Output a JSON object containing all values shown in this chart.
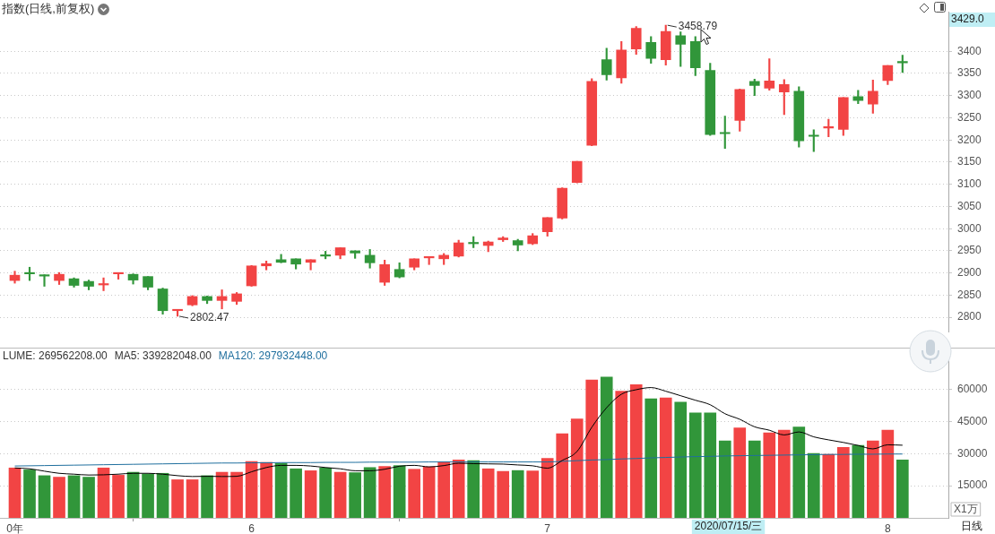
{
  "chart_data": [
    {
      "type": "candlestick",
      "title": "指数(日线,前复权)",
      "categories": [
        null,
        null,
        null,
        null,
        null,
        null,
        null,
        null,
        null,
        null,
        null,
        null,
        null,
        null,
        null,
        null,
        null,
        null,
        null,
        null,
        null,
        null,
        null,
        null,
        null,
        null,
        null,
        null,
        null,
        null,
        null,
        null,
        null,
        null,
        null,
        null,
        null,
        null,
        null,
        null,
        null,
        null,
        null,
        null,
        null,
        null,
        null,
        null,
        null,
        null,
        null,
        null,
        null,
        null,
        null,
        null,
        null,
        null,
        null,
        null,
        null
      ],
      "ohlc": [
        [
          2883,
          2904,
          2877,
          2895
        ],
        [
          2900,
          2913,
          2883,
          2898
        ],
        [
          2895,
          2896,
          2870,
          2893
        ],
        [
          2883,
          2901,
          2874,
          2897
        ],
        [
          2887,
          2889,
          2868,
          2872
        ],
        [
          2881,
          2884,
          2862,
          2870
        ],
        [
          2873,
          2889,
          2860,
          2874
        ],
        [
          2898,
          2900,
          2886,
          2900
        ],
        [
          2897,
          2898,
          2875,
          2884
        ],
        [
          2892,
          2892,
          2862,
          2868
        ],
        [
          2864,
          2866,
          2807,
          2815
        ],
        [
          2815,
          2817,
          2802.47,
          2817
        ],
        [
          2828,
          2849,
          2826,
          2847
        ],
        [
          2847,
          2848,
          2831,
          2838
        ],
        [
          2838,
          2862,
          2819,
          2847
        ],
        [
          2836,
          2856,
          2829,
          2853
        ],
        [
          2871,
          2917,
          2870,
          2916
        ],
        [
          2916,
          2927,
          2907,
          2921
        ],
        [
          2930,
          2942,
          2923,
          2924
        ],
        [
          2932,
          2932,
          2909,
          2920
        ],
        [
          2924,
          2930,
          2907,
          2930
        ],
        [
          2941,
          2949,
          2932,
          2938
        ],
        [
          2940,
          2957,
          2932,
          2957
        ],
        [
          2950,
          2950,
          2933,
          2945
        ],
        [
          2940,
          2953,
          2911,
          2923
        ],
        [
          2879,
          2929,
          2872,
          2919
        ],
        [
          2908,
          2923,
          2889,
          2891
        ],
        [
          2913,
          2932,
          2907,
          2932
        ],
        [
          2934,
          2936,
          2919,
          2936
        ],
        [
          2932,
          2944,
          2919,
          2940
        ],
        [
          2938,
          2974,
          2936,
          2968
        ],
        [
          2968,
          2982,
          2957,
          2966
        ],
        [
          2962,
          2972,
          2948,
          2970
        ],
        [
          2975,
          2982,
          2971,
          2979
        ],
        [
          2973,
          2976,
          2950,
          2963
        ],
        [
          2966,
          2989,
          2964,
          2984
        ],
        [
          2993,
          3025,
          2983,
          3025
        ],
        [
          3024,
          3092,
          3022,
          3091
        ],
        [
          3104,
          3152,
          3103,
          3152
        ],
        [
          3188,
          3338,
          3187,
          3332
        ],
        [
          3381,
          3407,
          3335,
          3347
        ],
        [
          3340,
          3422,
          3328,
          3403
        ],
        [
          3405,
          3456,
          3393,
          3452
        ],
        [
          3420,
          3433,
          3373,
          3384
        ],
        [
          3381,
          3458.79,
          3369,
          3445
        ],
        [
          3435,
          3444,
          3366,
          3416
        ],
        [
          3422,
          3433,
          3345,
          3363
        ],
        [
          3357,
          3373,
          3210,
          3212
        ],
        [
          3216,
          3254,
          3181,
          3214
        ],
        [
          3244,
          3315,
          3220,
          3314
        ],
        [
          3332,
          3337,
          3300,
          3323
        ],
        [
          3317,
          3383,
          3312,
          3333
        ],
        [
          3308,
          3336,
          3257,
          3325
        ],
        [
          3310,
          3320,
          3184,
          3198
        ],
        [
          3211,
          3223,
          3174,
          3208
        ],
        [
          3227,
          3247,
          3207,
          3230
        ],
        [
          3224,
          3296,
          3210,
          3296
        ],
        [
          3298,
          3312,
          3282,
          3289
        ],
        [
          3281,
          3335,
          3260,
          3310
        ],
        [
          3334,
          3368,
          3325,
          3368
        ],
        [
          3377,
          3391,
          3352,
          3374
        ]
      ],
      "colors": [
        "#f24444",
        "#31963a",
        "#31963a",
        "#f24444",
        "#31963a",
        "#31963a",
        "#f24444",
        "#f24444",
        "#31963a",
        "#31963a",
        "#31963a",
        "#f24444",
        "#f24444",
        "#31963a",
        "#f24444",
        "#f24444",
        "#f24444",
        "#f24444",
        "#31963a",
        "#31963a",
        "#f24444",
        "#31963a",
        "#f24444",
        "#31963a",
        "#31963a",
        "#f24444",
        "#31963a",
        "#f24444",
        "#f24444",
        "#f24444",
        "#f24444",
        "#31963a",
        "#f24444",
        "#f24444",
        "#31963a",
        "#f24444",
        "#f24444",
        "#f24444",
        "#f24444",
        "#f24444",
        "#31963a",
        "#f24444",
        "#f24444",
        "#31963a",
        "#f24444",
        "#31963a",
        "#31963a",
        "#31963a",
        "#31963a",
        "#f24444",
        "#31963a",
        "#f24444",
        "#f24444",
        "#31963a",
        "#31963a",
        "#f24444",
        "#f24444",
        "#31963a",
        "#f24444",
        "#f24444",
        "#31963a"
      ],
      "ylim": [
        2768,
        3489
      ],
      "yticks": [
        2800,
        2850,
        2900,
        2950,
        3000,
        3050,
        3100,
        3150,
        3200,
        3250,
        3300,
        3350,
        3400
      ],
      "grid": "y",
      "tick_labels": "y",
      "annotations": [
        "3458.79",
        "2802.47",
        "3429.0"
      ]
    },
    {
      "type": "bar",
      "categories": [
        "0年",
        null,
        null,
        null,
        null,
        null,
        null,
        null,
        null,
        null,
        null,
        null,
        null,
        null,
        null,
        null,
        "6",
        null,
        null,
        null,
        null,
        null,
        null,
        null,
        null,
        null,
        null,
        null,
        null,
        null,
        null,
        null,
        null,
        null,
        null,
        null,
        "7",
        null,
        null,
        null,
        null,
        null,
        null,
        null,
        null,
        null,
        null,
        null,
        null,
        null,
        null,
        null,
        null,
        null,
        null,
        null,
        null,
        null,
        null,
        "8",
        null
      ],
      "series": [
        {
          "type": "bar",
          "colors": [
            "#f24444",
            "#31963a",
            "#31963a",
            "#f24444",
            "#31963a",
            "#31963a",
            "#f24444",
            "#f24444",
            "#31963a",
            "#31963a",
            "#31963a",
            "#f24444",
            "#f24444",
            "#31963a",
            "#f24444",
            "#f24444",
            "#f24444",
            "#f24444",
            "#31963a",
            "#31963a",
            "#f24444",
            "#31963a",
            "#f24444",
            "#31963a",
            "#31963a",
            "#f24444",
            "#31963a",
            "#f24444",
            "#f24444",
            "#f24444",
            "#f24444",
            "#31963a",
            "#f24444",
            "#f24444",
            "#31963a",
            "#f24444",
            "#f24444",
            "#f24444",
            "#f24444",
            "#f24444",
            "#31963a",
            "#f24444",
            "#f24444",
            "#31963a",
            "#f24444",
            "#31963a",
            "#31963a",
            "#31963a",
            "#31963a",
            "#f24444",
            "#31963a",
            "#f24444",
            "#f24444",
            "#31963a",
            "#31963a",
            "#f24444",
            "#f24444",
            "#31963a",
            "#f24444",
            "#f24444",
            "#31963a"
          ],
          "values": [
            23300,
            22400,
            19700,
            19000,
            19700,
            19000,
            23300,
            19900,
            21300,
            20500,
            20800,
            17800,
            17800,
            19700,
            21300,
            21300,
            26300,
            25900,
            25500,
            22900,
            22000,
            23300,
            21300,
            21100,
            23500,
            24000,
            24400,
            22700,
            23800,
            26200,
            27000,
            26700,
            22900,
            21700,
            22100,
            21900,
            27800,
            39300,
            46200,
            64400,
            65700,
            59100,
            62200,
            55600,
            56000,
            54000,
            49000,
            49000,
            35900,
            42000,
            35900,
            39700,
            40900,
            42400,
            30100,
            29600,
            32900,
            33800,
            35900,
            40900,
            27000
          ]
        },
        {
          "type": "line",
          "color": "#000000",
          "values": [
            23300,
            22900,
            21800,
            20800,
            20400,
            20000,
            20100,
            20400,
            20800,
            20800,
            20400,
            19700,
            19300,
            19400,
            19300,
            19400,
            21500,
            23500,
            24500,
            24500,
            24200,
            23500,
            22900,
            22000,
            22000,
            22700,
            24100,
            24500,
            23800,
            24400,
            25500,
            25300,
            25200,
            25100,
            24700,
            24300,
            23200,
            26800,
            31000,
            42300,
            51400,
            57700,
            59800,
            60800,
            59100,
            57000,
            54900,
            52800,
            48600,
            46000,
            42500,
            40900,
            38700,
            40100,
            37800,
            36400,
            35200,
            33800,
            32200,
            34100,
            33900
          ]
        },
        {
          "type": "line",
          "color": "#1f6f9e",
          "values": [
            24200,
            24300,
            24400,
            24500,
            24600,
            24700,
            24800,
            24900,
            25000,
            25100,
            25200,
            25300,
            25400,
            25500,
            25600,
            25600,
            25700,
            25700,
            25800,
            25800,
            25800,
            25900,
            25900,
            25900,
            26000,
            26000,
            26000,
            26000,
            26100,
            26100,
            26100,
            26100,
            26100,
            26100,
            26100,
            26100,
            26100,
            26400,
            26700,
            27000,
            27200,
            27500,
            27700,
            28000,
            28200,
            28400,
            28600,
            28700,
            28900,
            29000,
            29100,
            29200,
            29300,
            29400,
            29500,
            29600,
            29600,
            29700,
            29700,
            29800,
            29800
          ]
        }
      ],
      "ylim": [
        0,
        73500
      ],
      "yticks": [
        15000,
        30000,
        45000,
        60000
      ],
      "grid": "y",
      "ylabel": "X1万",
      "annotations": [
        "LUME: 269562208.00",
        "MA5: 339282048.00",
        "MA120: 297932448.00",
        "2020/07/15/三",
        "日线"
      ]
    }
  ]
}
